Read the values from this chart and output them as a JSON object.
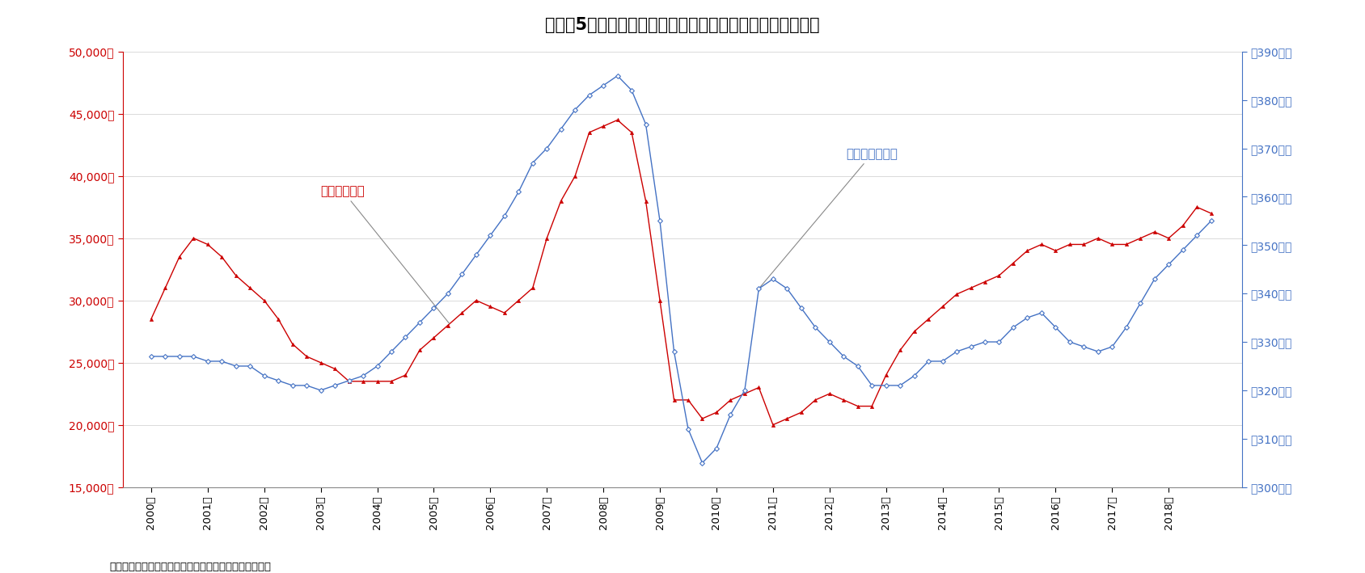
{
  "title": "図表－5　東京都心部ａクラスビルの成約賃料と企業売上高",
  "caption": "（出所）三幸エステート・ニッセイ基礎研究所、財務省",
  "left_label": "賃料（左軸）",
  "right_label": "売上高（右軸）",
  "left_color": "#cc0000",
  "right_color": "#4472c4",
  "left_ylim": [
    15000,
    50000
  ],
  "right_ylim": [
    300,
    390
  ],
  "left_yticks": [
    15000,
    20000,
    25000,
    30000,
    35000,
    40000,
    45000,
    50000
  ],
  "right_yticks": [
    300,
    310,
    320,
    330,
    340,
    350,
    360,
    370,
    380,
    390
  ],
  "xtick_labels": [
    "2000年",
    "2001年",
    "2002年",
    "2003年",
    "2004年",
    "2005年",
    "2006年",
    "2007年",
    "2008年",
    "2009年",
    "2010年",
    "2011年",
    "2012年",
    "2013年",
    "2014年",
    "2015年",
    "2016年",
    "2017年",
    "2018年"
  ],
  "rent_quarterly": [
    28500,
    31000,
    33500,
    35000,
    34500,
    33500,
    32000,
    31000,
    30000,
    28500,
    26500,
    25500,
    25000,
    24500,
    23500,
    23500,
    23500,
    23500,
    24000,
    26000,
    27000,
    28000,
    29000,
    30000,
    29500,
    29000,
    30000,
    31000,
    35000,
    38000,
    40000,
    43500,
    44000,
    44500,
    43500,
    38000,
    30000,
    22000,
    22000,
    20500,
    21000,
    22000,
    22500,
    23000,
    20000,
    20500,
    21000,
    22000,
    22500,
    22000,
    21500,
    21500,
    24000,
    26000,
    27500,
    28500,
    29500,
    30500,
    31000,
    31500,
    32000,
    33000,
    34000,
    34500,
    34000,
    34500,
    34500,
    35000,
    34500,
    34500,
    35000,
    35500,
    35000,
    36000,
    37500,
    37000
  ],
  "sales_quarterly": [
    327,
    327,
    327,
    327,
    326,
    326,
    325,
    325,
    323,
    322,
    321,
    321,
    320,
    321,
    322,
    323,
    325,
    328,
    331,
    334,
    337,
    340,
    344,
    348,
    352,
    356,
    361,
    367,
    370,
    374,
    378,
    381,
    383,
    385,
    382,
    375,
    355,
    328,
    312,
    305,
    308,
    315,
    320,
    341,
    343,
    341,
    337,
    333,
    330,
    327,
    325,
    321,
    321,
    321,
    323,
    326,
    326,
    328,
    329,
    330,
    330,
    333,
    335,
    336,
    333,
    330,
    329,
    328,
    329,
    333,
    338,
    343,
    346,
    349,
    352,
    355
  ]
}
